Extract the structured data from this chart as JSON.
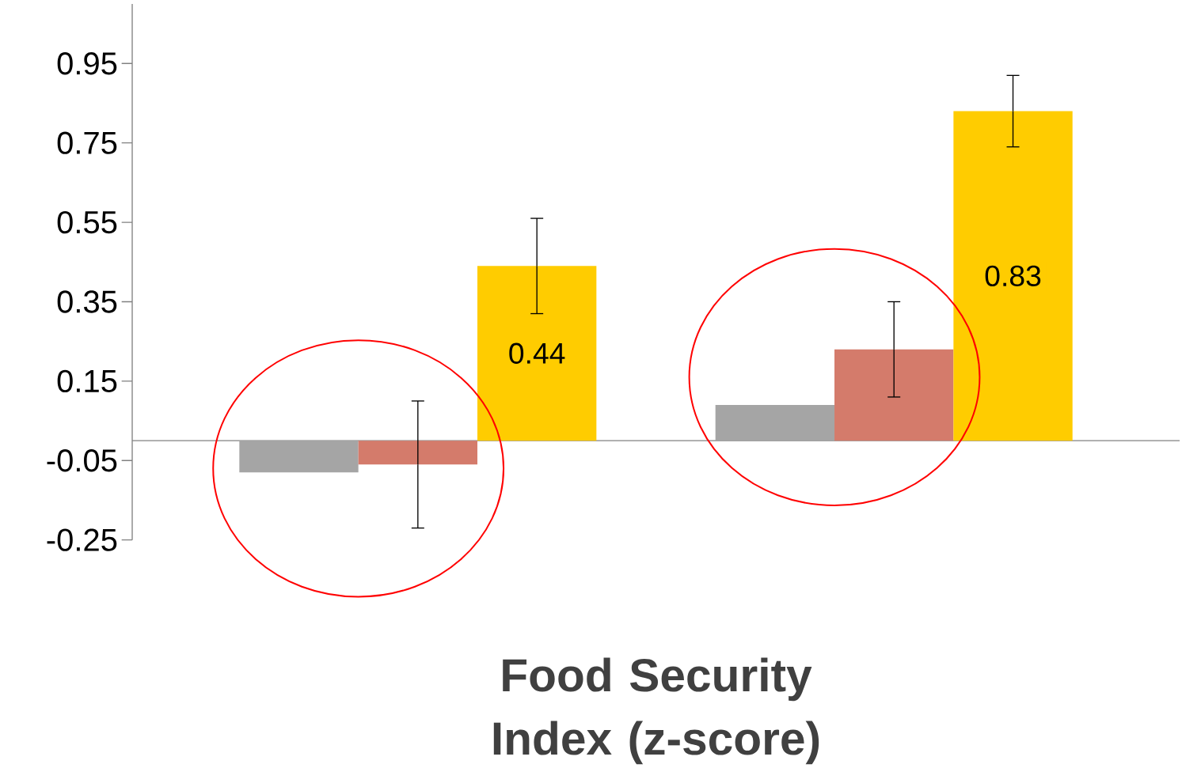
{
  "chart_data": {
    "type": "bar",
    "xlabel": "Food Security Index (z-score)",
    "categories": [
      null,
      null
    ],
    "series": [
      {
        "color": "#a5a5a5",
        "values": [
          -0.08,
          0.09
        ]
      },
      {
        "color": "#d47b6b",
        "values": [
          -0.06,
          0.23
        ],
        "errors": [
          0.16,
          0.12
        ]
      },
      {
        "color": "#ffcc00",
        "values": [
          0.44,
          0.83
        ],
        "errors": [
          0.12,
          0.09
        ],
        "value_labels": [
          "0.44",
          "0.83"
        ]
      }
    ],
    "ylim": [
      -0.25,
      1.1
    ],
    "yticks": [
      -0.25,
      -0.05,
      0.15,
      0.35,
      0.55,
      0.75,
      0.95
    ],
    "grid": false
  }
}
